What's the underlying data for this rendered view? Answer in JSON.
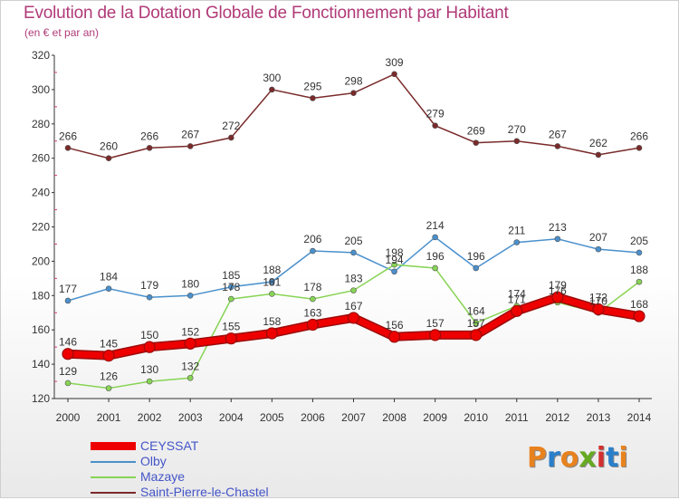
{
  "header": {
    "title": "Evolution de la Dotation Globale de Fonctionnement par Habitant",
    "subtitle": "(en € et par an)"
  },
  "logo": {
    "text": "Proxiti",
    "colors": [
      "#e8821e",
      "#2a7fcb",
      "#e8821e",
      "#66aa22",
      "#d32f2f",
      "#2a7fcb",
      "#e8821e"
    ]
  },
  "chart_data": {
    "type": "line",
    "title": "Evolution de la Dotation Globale de Fonctionnement par Habitant",
    "subtitle": "(en € et par an)",
    "xlabel": "",
    "ylabel": "",
    "x": [
      2000,
      2001,
      2002,
      2003,
      2004,
      2005,
      2006,
      2007,
      2008,
      2009,
      2010,
      2011,
      2012,
      2013,
      2014
    ],
    "ylim": [
      120,
      320
    ],
    "yticks": [
      120,
      140,
      160,
      180,
      200,
      220,
      240,
      260,
      280,
      300,
      320
    ],
    "grid": false,
    "legend": "bottom-left",
    "series": [
      {
        "name": "CEYSSAT",
        "color": "#ee0000",
        "bold": true,
        "values": [
          146,
          145,
          150,
          152,
          155,
          158,
          163,
          167,
          156,
          157,
          157,
          171,
          179,
          172,
          168
        ],
        "labels": [
          "146",
          "145",
          "150",
          "152",
          "155",
          "158",
          "163",
          "167",
          "156",
          "157",
          "157",
          "171",
          "179",
          "172",
          "168"
        ]
      },
      {
        "name": "Olby",
        "color": "#4a90cc",
        "bold": false,
        "values": [
          177,
          184,
          179,
          180,
          185,
          188,
          206,
          205,
          194,
          214,
          196,
          211,
          213,
          207,
          205
        ],
        "labels": [
          "177",
          "184",
          "179",
          "180",
          "185",
          "188",
          "206",
          "205",
          "194",
          "214",
          "196",
          "211",
          "213",
          "207",
          "205"
        ]
      },
      {
        "name": "Mazaye",
        "color": "#88d455",
        "bold": false,
        "values": [
          129,
          126,
          130,
          132,
          178,
          181,
          178,
          183,
          198,
          196,
          164,
          174,
          176,
          170,
          188
        ],
        "labels": [
          "129",
          "126",
          "130",
          "132",
          "178",
          "181",
          "178",
          "183",
          "198",
          "196",
          "164",
          "174",
          "176",
          "170",
          "188"
        ]
      },
      {
        "name": "Saint-Pierre-le-Chastel",
        "color": "#7a2a2a",
        "bold": false,
        "values": [
          266,
          260,
          266,
          267,
          272,
          300,
          295,
          298,
          309,
          279,
          269,
          270,
          267,
          262,
          266
        ],
        "labels": [
          "266",
          "260",
          "266",
          "267",
          "272",
          "300",
          "295",
          "298",
          "309",
          "279",
          "269",
          "270",
          "267",
          "262",
          "266"
        ]
      }
    ]
  }
}
